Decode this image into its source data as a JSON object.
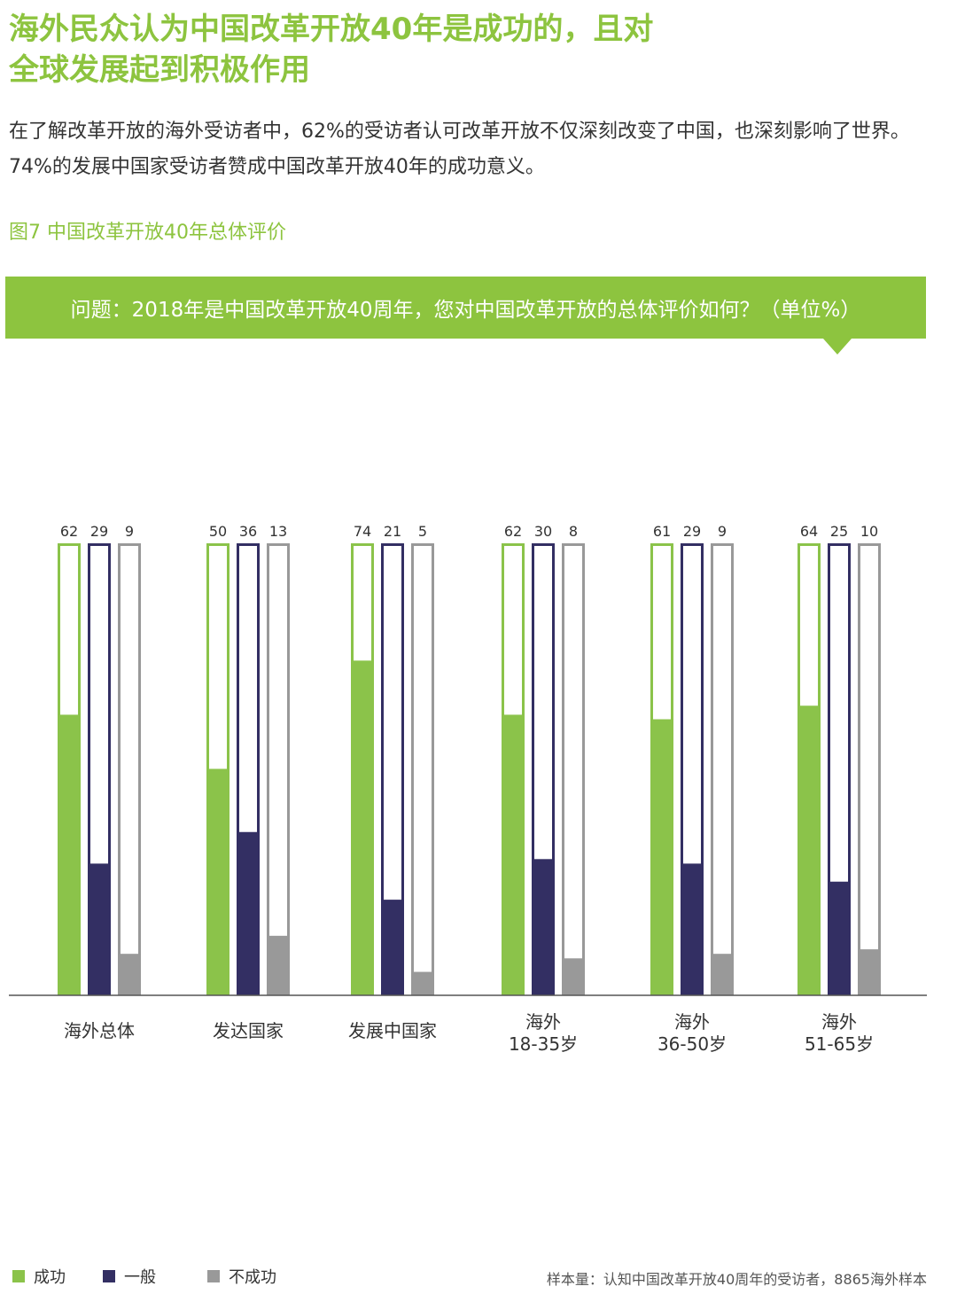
{
  "heading": {
    "line1": "海外民众认为中国改革开放40年是成功的，且对",
    "line2": "全球发展起到积极作用"
  },
  "intro": "在了解改革开放的海外受访者中，62%的受访者认可改革开放不仅深刻改变了中国，也深刻影响了世界。74%的发展中国家受访者赞成中国改革开放40年的成功意义。",
  "figure_title": "图7 中国改革开放40年总体评价",
  "question": "问题：2018年是中国改革开放40周年，您对中国改革开放的总体评价如何？（单位%）",
  "colors": {
    "accent": "#8dc43f",
    "success": "#8bc34a",
    "average": "#332f63",
    "fail": "#999999"
  },
  "chart_data": {
    "type": "bar",
    "categories": [
      [
        "海外总体"
      ],
      [
        "发达国家"
      ],
      [
        "发展中国家"
      ],
      [
        "海外",
        "18-35岁"
      ],
      [
        "海外",
        "36-50岁"
      ],
      [
        "海外",
        "51-65岁"
      ]
    ],
    "series": [
      {
        "name": "成功",
        "values": [
          62,
          50,
          74,
          62,
          61,
          64
        ]
      },
      {
        "name": "一般",
        "values": [
          29,
          36,
          21,
          30,
          29,
          25
        ]
      },
      {
        "name": "不成功",
        "values": [
          9,
          13,
          5,
          8,
          9,
          10
        ]
      }
    ],
    "ylim": [
      0,
      100
    ],
    "grid": false,
    "legend_position": "bottom-left"
  },
  "legend": {
    "success": "成功",
    "average": "一般",
    "fail": "不成功"
  },
  "source": "样本量：认知中国改革开放40周年的受访者，8865海外样本"
}
